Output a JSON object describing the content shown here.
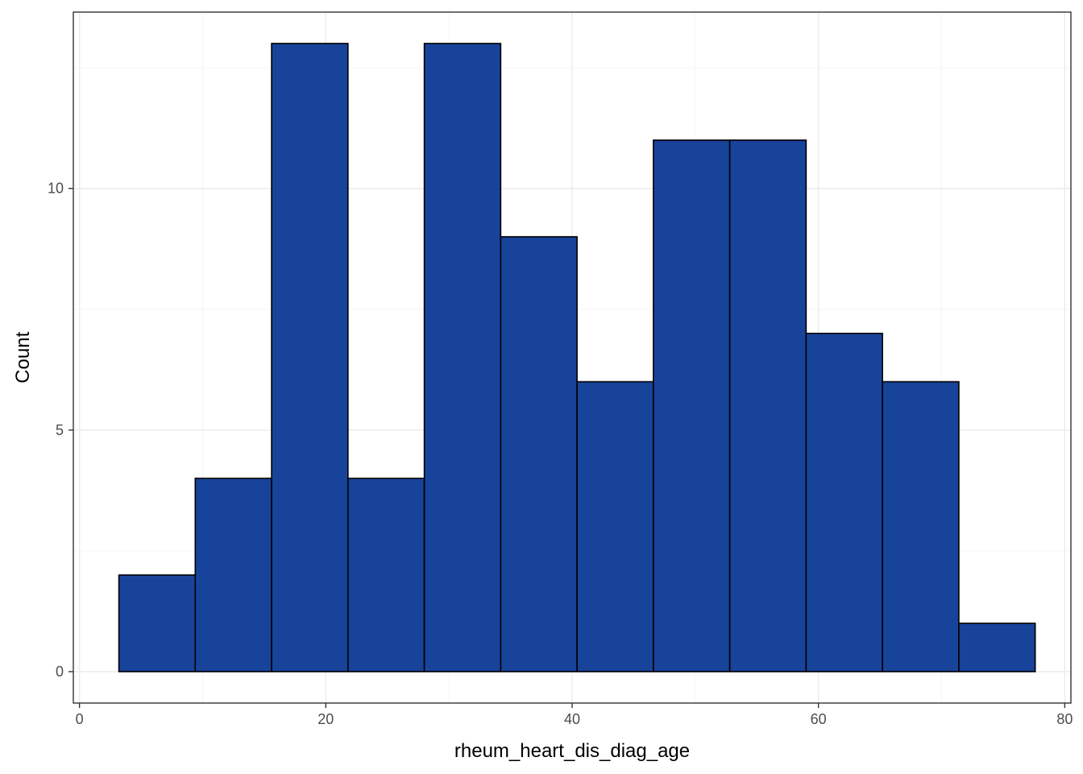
{
  "chart_data": {
    "type": "bar",
    "subtype": "histogram",
    "title": "",
    "xlabel": "rheum_heart_dis_diag_age",
    "ylabel": "Count",
    "xlim": [
      -0.5,
      80.5
    ],
    "ylim": [
      -0.65,
      13.65
    ],
    "x_ticks": [
      0,
      20,
      40,
      60,
      80
    ],
    "y_ticks": [
      0,
      5,
      10
    ],
    "x_tick_labels": [
      "0",
      "20",
      "40",
      "60",
      "80"
    ],
    "y_tick_labels": [
      "0",
      "5",
      "10"
    ],
    "x_minor_ticks": [
      10,
      30,
      50,
      70
    ],
    "y_minor_ticks": [
      2.5,
      7.5,
      12.5
    ],
    "grid": true,
    "legend": "none",
    "bins": [
      {
        "x0": 3.2,
        "x1": 9.4,
        "count": 2
      },
      {
        "x0": 9.4,
        "x1": 15.6,
        "count": 4
      },
      {
        "x0": 15.6,
        "x1": 21.8,
        "count": 13
      },
      {
        "x0": 21.8,
        "x1": 28.0,
        "count": 4
      },
      {
        "x0": 28.0,
        "x1": 34.2,
        "count": 13
      },
      {
        "x0": 34.2,
        "x1": 40.4,
        "count": 9
      },
      {
        "x0": 40.4,
        "x1": 46.6,
        "count": 6
      },
      {
        "x0": 46.6,
        "x1": 52.8,
        "count": 11
      },
      {
        "x0": 52.8,
        "x1": 59.0,
        "count": 11
      },
      {
        "x0": 59.0,
        "x1": 65.2,
        "count": 7
      },
      {
        "x0": 65.2,
        "x1": 71.4,
        "count": 6
      },
      {
        "x0": 71.4,
        "x1": 77.6,
        "count": 1
      }
    ],
    "colors": {
      "bar_fill": "#18439a",
      "bar_stroke": "#000000",
      "panel_border": "#333333",
      "grid_major": "#ebebeb",
      "grid_minor": "#f5f5f5",
      "tick_mark": "#333333"
    }
  }
}
